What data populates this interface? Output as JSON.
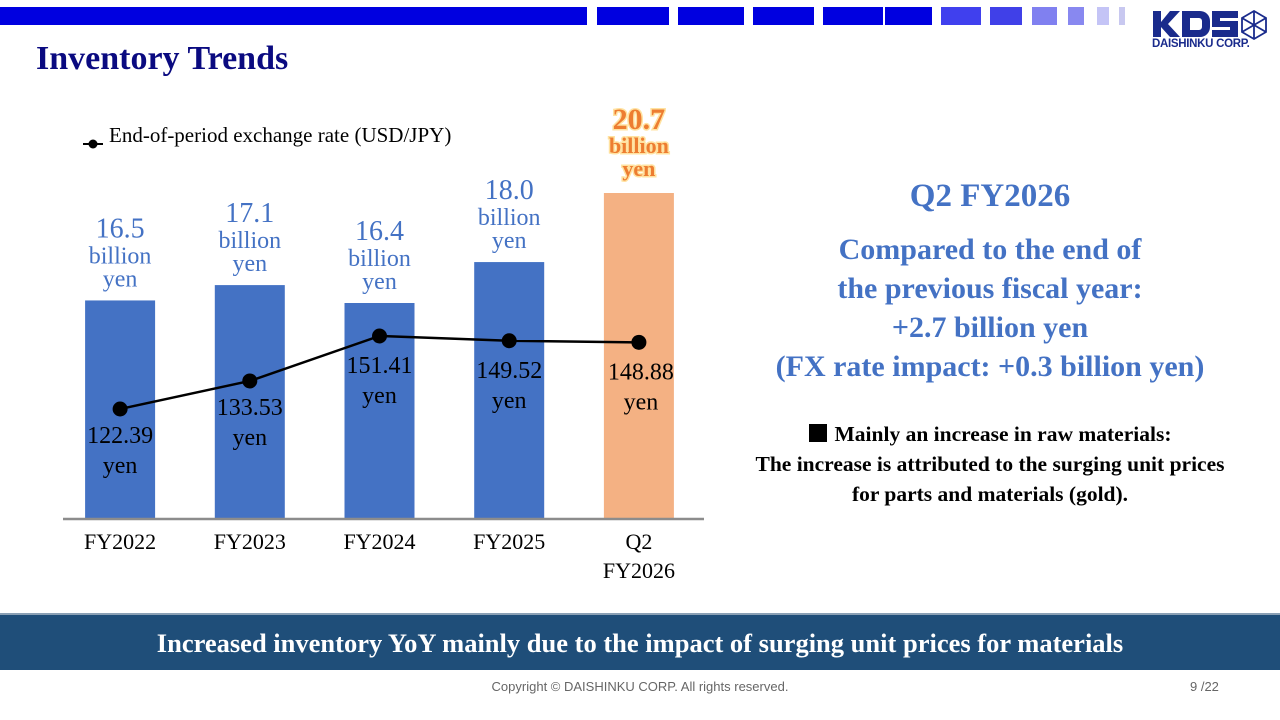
{
  "slide": {
    "title": "Inventory Trends",
    "logo_text": "KDS",
    "logo_subtext": "DAISHINKU CORP.",
    "page_number": "9 /22",
    "copyright": "Copyright © DAISHINKU CORP. All rights reserved.",
    "banner": "Increased inventory YoY mainly due to the impact of surging unit prices for materials"
  },
  "colors": {
    "title": "#0a0a80",
    "bar_blue": "#4472c4",
    "bar_highlight": "#f4b183",
    "highlight_label": "#ed7d31",
    "banner_bg": "#1f4e79",
    "topbar": "#0000e0"
  },
  "right_panel": {
    "heading": "Q2 FY2026",
    "lines": [
      "Compared to the end of",
      "the previous fiscal year:",
      "+2.7 billion yen",
      "(FX rate impact: +0.3 billion yen)"
    ],
    "note_lines": [
      "Mainly an increase in raw materials:",
      "The increase is attributed to the surging unit prices",
      "for parts and materials (gold)."
    ],
    "note_bullet_icon": "black-square-icon"
  },
  "chart_data": {
    "type": "bar",
    "title": "",
    "xlabel": "",
    "ylabel": "",
    "categories": [
      "FY2022",
      "FY2023",
      "FY2024",
      "FY2025",
      "Q2 FY2026"
    ],
    "category_lines": [
      [
        "FY2022"
      ],
      [
        "FY2023"
      ],
      [
        "FY2024"
      ],
      [
        "FY2025"
      ],
      [
        "Q2",
        "FY2026"
      ]
    ],
    "grid": false,
    "legend": "top-left",
    "series": [
      {
        "name": "Inventory",
        "type": "bar",
        "unit": "billion yen",
        "values": [
          16.5,
          17.1,
          16.4,
          18.0,
          20.7
        ],
        "labels": [
          [
            "16.5",
            "billion",
            "yen"
          ],
          [
            "17.1",
            "billion",
            "yen"
          ],
          [
            "16.4",
            "billion",
            "yen"
          ],
          [
            "18.0",
            "billion",
            "yen"
          ],
          [
            "20.7",
            "billion",
            "yen"
          ]
        ],
        "highlight_index": 4
      },
      {
        "name": "End-of-period exchange rate (USD/JPY)",
        "type": "line",
        "unit": "yen",
        "values": [
          122.39,
          133.53,
          151.41,
          149.52,
          148.88
        ],
        "labels": [
          [
            "122.39",
            "yen"
          ],
          [
            "133.53",
            "yen"
          ],
          [
            "151.41",
            "yen"
          ],
          [
            "149.52",
            "yen"
          ],
          [
            "148.88",
            "yen"
          ]
        ]
      }
    ],
    "legend_entries": [
      "End-of-period exchange rate (USD/JPY)"
    ]
  }
}
